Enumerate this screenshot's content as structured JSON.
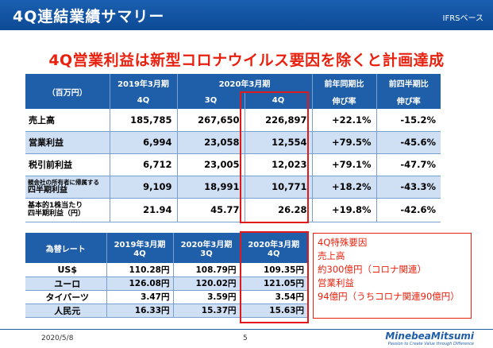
{
  "header": {
    "title": "4Q連結業績サマリー",
    "standard": "IFRSベース"
  },
  "headline": "4Q営業利益は新型コロナウイルス要因を除くと計画達成",
  "results": {
    "unit": "（百万円）",
    "col_fy19": "2019年3月期",
    "col_fy20": "2020年3月期",
    "col_yoy_1": "前年同期比",
    "col_yoy_2": "伸び率",
    "col_qoq_1": "前四半期比",
    "col_qoq_2": "伸び率",
    "sub_q4_19": "4Q",
    "sub_q3_20": "3Q",
    "sub_q4_20": "4Q",
    "rows": [
      {
        "label": "売上高",
        "v1": "185,785",
        "v2": "267,650",
        "v3": "226,897",
        "yoy": "+22.1%",
        "qoq": "-15.2%"
      },
      {
        "label": "営業利益",
        "v1": "6,994",
        "v2": "23,058",
        "v3": "12,554",
        "yoy": "+79.5%",
        "qoq": "-45.6%"
      },
      {
        "label": "税引前利益",
        "v1": "6,712",
        "v2": "23,005",
        "v3": "12,023",
        "yoy": "+79.1%",
        "qoq": "-47.7%"
      },
      {
        "label_a": "親会社の所有者に帰属する",
        "label_b": "四半期利益",
        "v1": "9,109",
        "v2": "18,991",
        "v3": "10,771",
        "yoy": "+18.2%",
        "qoq": "-43.3%"
      },
      {
        "label_a": "基本的1株当たり",
        "label_b": "四半期利益（円）",
        "v1": "21.94",
        "v2": "45.77",
        "v3": "26.28",
        "yoy": "+19.8%",
        "qoq": "-42.6%"
      }
    ]
  },
  "fx": {
    "header": "為替レート",
    "c1_a": "2019年3月期",
    "c1_b": "4Q",
    "c2_a": "2020年3月期",
    "c2_b": "3Q",
    "c3_a": "2020年3月期",
    "c3_b": "4Q",
    "rows": [
      {
        "label": "US$",
        "v1": "110.28円",
        "v2": "108.79円",
        "v3": "109.35円"
      },
      {
        "label": "ユーロ",
        "v1": "126.08円",
        "v2": "120.02円",
        "v3": "121.05円"
      },
      {
        "label": "タイバーツ",
        "v1": "3.47円",
        "v2": "3.59円",
        "v3": "3.54円"
      },
      {
        "label": "人民元",
        "v1": "16.33円",
        "v2": "15.37円",
        "v3": "15.63円"
      }
    ]
  },
  "special": {
    "line1": "4Q特殊要因",
    "line2": "売上高",
    "line3": "約300億円（コロナ関連）",
    "line4": "営業利益",
    "line5": "94億円（うちコロナ関連90億円）"
  },
  "footer": {
    "date": "2020/5/8",
    "page": "5",
    "logo": "MinebeaMitsumi",
    "tagline": "Passion to Create Value through Difference"
  },
  "colors": {
    "brand_blue": "#1f5ea8",
    "accent_red": "#e8200e",
    "row_shade": "#cfe0f5"
  }
}
